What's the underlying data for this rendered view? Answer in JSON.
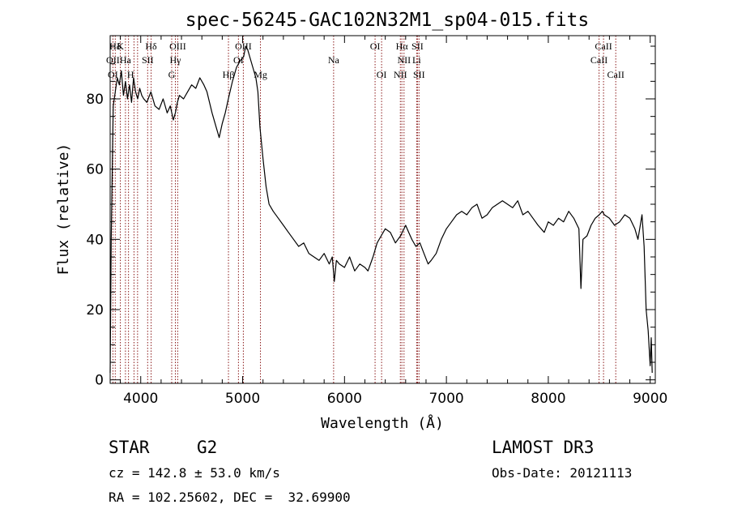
{
  "chart_data": {
    "type": "line",
    "title": "spec-56245-GAC102N32M1_sp04-015.fits",
    "xlabel": "Wavelength (Å)",
    "ylabel": "Flux (relative)",
    "xlim": [
      3700,
      9050
    ],
    "ylim": [
      -1,
      98
    ],
    "x_ticks": [
      4000,
      5000,
      6000,
      7000,
      8000,
      9000
    ],
    "x_tick_labels": [
      "4000",
      "5000",
      "6000",
      "7000",
      "8000",
      "9000"
    ],
    "y_ticks": [
      0,
      20,
      40,
      60,
      80
    ],
    "y_tick_labels": [
      "0",
      "20",
      "40",
      "60",
      "80"
    ],
    "grid": false,
    "line_color": "#000000",
    "marker_color": "#8b1a1a",
    "series": [
      {
        "x": [
          3700,
          3710,
          3730,
          3750,
          3770,
          3790,
          3810,
          3830,
          3850,
          3870,
          3890,
          3910,
          3930,
          3950,
          3970,
          3990,
          4010,
          4030,
          4060,
          4100,
          4140,
          4180,
          4220,
          4260,
          4290,
          4320,
          4340,
          4360,
          4380,
          4420,
          4460,
          4500,
          4540,
          4580,
          4620,
          4650,
          4700,
          4740,
          4770,
          4800,
          4830,
          4860,
          4900,
          4940,
          4980,
          5010,
          5030,
          5050,
          5070,
          5100,
          5130,
          5150,
          5170,
          5200,
          5230,
          5260,
          5300,
          5350,
          5400,
          5450,
          5500,
          5550,
          5600,
          5650,
          5700,
          5750,
          5800,
          5850,
          5880,
          5900,
          5920,
          5950,
          6000,
          6050,
          6100,
          6150,
          6200,
          6230,
          6280,
          6320,
          6360,
          6400,
          6450,
          6500,
          6550,
          6600,
          6630,
          6660,
          6700,
          6740,
          6780,
          6820,
          6850,
          6900,
          6950,
          7000,
          7050,
          7100,
          7150,
          7200,
          7250,
          7300,
          7350,
          7400,
          7450,
          7500,
          7550,
          7600,
          7650,
          7700,
          7750,
          7800,
          7850,
          7900,
          7930,
          7960,
          8000,
          8050,
          8100,
          8150,
          8200,
          8250,
          8300,
          8320,
          8340,
          8380,
          8420,
          8460,
          8500,
          8530,
          8550,
          8600,
          8650,
          8700,
          8750,
          8800,
          8850,
          8880,
          8920,
          8940,
          8960,
          8980,
          9000,
          9010,
          9020
        ],
        "y": [
          2,
          40,
          78,
          82,
          86,
          84,
          88,
          81,
          85,
          80,
          84,
          79,
          86,
          82,
          80,
          83,
          81,
          80,
          79,
          82,
          78,
          77,
          80,
          76,
          78,
          74,
          76,
          79,
          81,
          80,
          82,
          84,
          83,
          86,
          84,
          82,
          76,
          72,
          69,
          73,
          76,
          80,
          85,
          89,
          91,
          92,
          95,
          94,
          92,
          89,
          86,
          82,
          72,
          63,
          55,
          50,
          48,
          46,
          44,
          42,
          40,
          38,
          39,
          36,
          35,
          34,
          36,
          33,
          35,
          28,
          34,
          33,
          32,
          35,
          31,
          33,
          32,
          31,
          35,
          39,
          41,
          43,
          42,
          39,
          41,
          44,
          42,
          40,
          38,
          39,
          36,
          33,
          34,
          36,
          40,
          43,
          45,
          47,
          48,
          47,
          49,
          50,
          46,
          47,
          49,
          50,
          51,
          50,
          49,
          51,
          47,
          48,
          46,
          44,
          43,
          42,
          45,
          44,
          46,
          45,
          48,
          46,
          43,
          26,
          40,
          41,
          44,
          46,
          47,
          48,
          47,
          46,
          44,
          45,
          47,
          46,
          43,
          40,
          47,
          38,
          20,
          14,
          4,
          12,
          2
        ]
      }
    ],
    "lines": [
      {
        "label": "Hδ",
        "x": 3750,
        "row": 1
      },
      {
        "label": "K",
        "x": 3800,
        "row": 1
      },
      {
        "label": "Hδ",
        "x": 4102,
        "row": 1
      },
      {
        "label": "OII",
        "x": 3727,
        "row": 2
      },
      {
        "label": "Ha",
        "x": 3850,
        "row": 2
      },
      {
        "label": "SII",
        "x": 4068,
        "row": 2
      },
      {
        "label": "OI",
        "x": 3727,
        "row": 3
      },
      {
        "label": "H",
        "x": 3900,
        "row": 3
      },
      {
        "label": "OIII",
        "x": 4363,
        "row": 1
      },
      {
        "label": "Hγ",
        "x": 4340,
        "row": 2
      },
      {
        "label": "G",
        "x": 4304,
        "row": 3
      },
      {
        "label": "OIII",
        "x": 5007,
        "row": 1
      },
      {
        "label": "OI",
        "x": 4959,
        "row": 2
      },
      {
        "label": "Hβ",
        "x": 4861,
        "row": 3
      },
      {
        "label": "Mg",
        "x": 5175,
        "row": 3
      },
      {
        "label": "Na",
        "x": 5893,
        "row": 2
      },
      {
        "label": "OI",
        "x": 6300,
        "row": 1
      },
      {
        "label": "OI",
        "x": 6364,
        "row": 3
      },
      {
        "label": "Hα",
        "x": 6563,
        "row": 1
      },
      {
        "label": "SII",
        "x": 6716,
        "row": 1
      },
      {
        "label": "NII",
        "x": 6584,
        "row": 2
      },
      {
        "label": "Li",
        "x": 6708,
        "row": 2
      },
      {
        "label": "NII",
        "x": 6548,
        "row": 3
      },
      {
        "label": "SII",
        "x": 6731,
        "row": 3
      },
      {
        "label": "CaII",
        "x": 8542,
        "row": 1
      },
      {
        "label": "CaII",
        "x": 8498,
        "row": 2
      },
      {
        "label": "CaII",
        "x": 8662,
        "row": 3
      }
    ],
    "marker_x": [
      3727,
      3750,
      3800,
      3850,
      3880,
      3934,
      3969,
      4068,
      4102,
      4304,
      4340,
      4363,
      4861,
      4959,
      5007,
      5175,
      5893,
      6300,
      6364,
      6548,
      6563,
      6584,
      6708,
      6716,
      6731,
      8498,
      8542,
      8662
    ]
  },
  "info": {
    "object_class": "STAR",
    "subclass": "G2",
    "survey": "LAMOST DR3",
    "cz_line": "cz = 142.8 ± 53.0 km/s",
    "obs_date_line": "Obs-Date: 20121113",
    "radec_line": "RA = 102.25602, DEC =  32.69900"
  }
}
